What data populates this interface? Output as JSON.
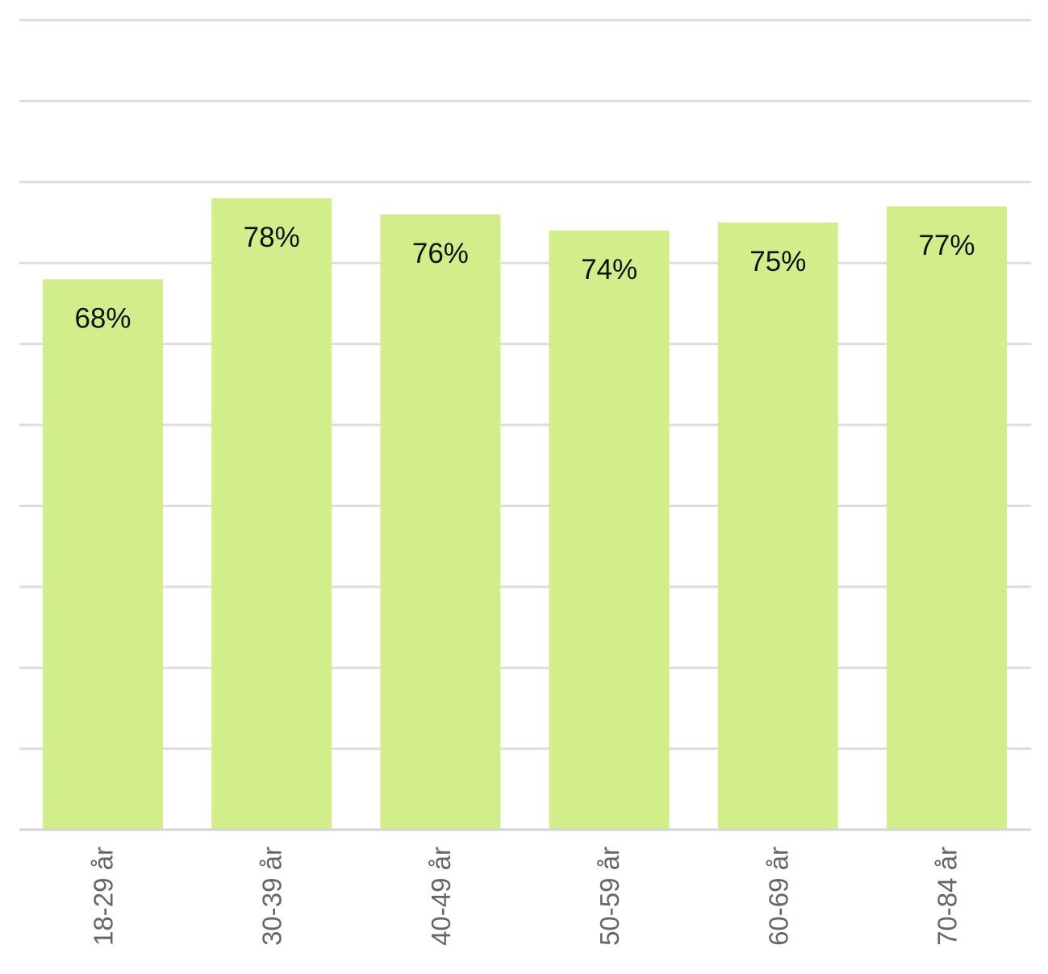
{
  "chart_data": {
    "type": "bar",
    "categories": [
      "18-29 år",
      "30-39 år",
      "40-49 år",
      "50-59 år",
      "60-69 år",
      "70-84 år"
    ],
    "values": [
      68,
      78,
      76,
      74,
      75,
      77
    ],
    "value_labels": [
      "68%",
      "78%",
      "76%",
      "74%",
      "75%",
      "77%"
    ],
    "ylim": [
      0,
      100
    ],
    "grid": true,
    "bar_color": "#d2ee8a",
    "grid_color": "#dddddd",
    "title": "",
    "xlabel": "",
    "ylabel": ""
  }
}
